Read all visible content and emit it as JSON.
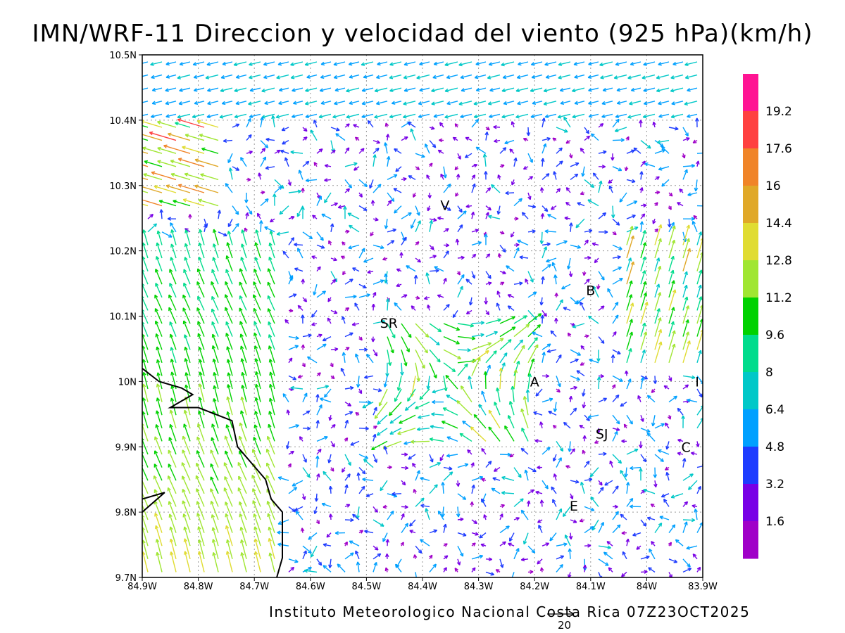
{
  "title": "IMN/WRF-11 Direccion y velocidad del viento (925 hPa)(km/h)",
  "footer": "Instituto Meteorologico Nacional Costa Rica 07Z23OCT2025",
  "reference_vector_label": "20",
  "lat_ticks": [
    "10.5N",
    "10.4N",
    "10.3N",
    "10.2N",
    "10.1N",
    "10N",
    "9.9N",
    "9.8N",
    "9.7N"
  ],
  "lon_ticks": [
    "84.9W",
    "84.8W",
    "84.7W",
    "84.6W",
    "84.5W",
    "84.4W",
    "84.3W",
    "84.2W",
    "84.1W",
    "84W",
    "83.9W"
  ],
  "cities": [
    {
      "id": "V",
      "lon": -84.36,
      "lat": 10.27
    },
    {
      "id": "B",
      "lon": -84.1,
      "lat": 10.14
    },
    {
      "id": "SR",
      "lon": -84.46,
      "lat": 10.09
    },
    {
      "id": "A",
      "lon": -84.2,
      "lat": 10.0
    },
    {
      "id": "I",
      "lon": -83.91,
      "lat": 10.0
    },
    {
      "id": "SJ",
      "lon": -84.08,
      "lat": 9.92
    },
    {
      "id": "C",
      "lon": -83.93,
      "lat": 9.9
    },
    {
      "id": "E",
      "lon": -84.13,
      "lat": 9.81
    }
  ],
  "legend": {
    "labels": [
      "19.2",
      "17.6",
      "16",
      "14.4",
      "12.8",
      "11.2",
      "9.6",
      "8",
      "6.4",
      "4.8",
      "3.2",
      "1.6"
    ],
    "colors": [
      "#ff1493",
      "#ff4040",
      "#f08428",
      "#e0a828",
      "#e0dc32",
      "#a0e632",
      "#00d200",
      "#00dc8c",
      "#00c8c8",
      "#00a0ff",
      "#1e3cff",
      "#7800e6",
      "#a000c8"
    ]
  },
  "coastline": [
    [
      -84.9,
      10.02
    ],
    [
      -84.87,
      10.0
    ],
    [
      -84.83,
      9.99
    ],
    [
      -84.81,
      9.98
    ],
    [
      -84.83,
      9.97
    ],
    [
      -84.85,
      9.96
    ],
    [
      -84.8,
      9.96
    ],
    [
      -84.77,
      9.95
    ],
    [
      -84.74,
      9.94
    ],
    [
      -84.73,
      9.9
    ],
    [
      -84.72,
      9.89
    ],
    [
      -84.7,
      9.87
    ],
    [
      -84.68,
      9.85
    ],
    [
      -84.67,
      9.82
    ],
    [
      -84.65,
      9.8
    ],
    [
      -84.65,
      9.78
    ],
    [
      -84.65,
      9.75
    ],
    [
      -84.65,
      9.73
    ],
    [
      -84.66,
      9.7
    ]
  ],
  "coastline2": [
    [
      -84.9,
      9.8
    ],
    [
      -84.86,
      9.83
    ],
    [
      -84.9,
      9.82
    ]
  ]
}
